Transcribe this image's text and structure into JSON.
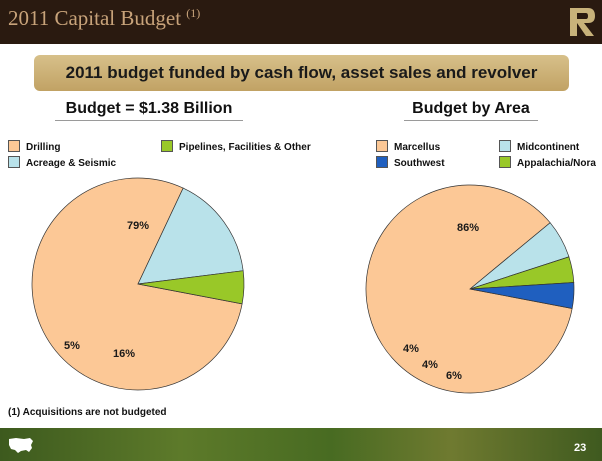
{
  "header": {
    "title": "2011 Capital Budget",
    "title_note": "(1)"
  },
  "banner": {
    "text": "2011 budget funded by cash flow, asset sales and revolver"
  },
  "footnote": "(1)  Acquisitions are not budgeted",
  "page_number": "23",
  "chart_data": [
    {
      "type": "pie",
      "title": "Budget = $1.38 Billion",
      "legend": [
        "Drilling",
        "Pipelines, Facilities & Other",
        "Acreage & Seismic"
      ],
      "slices": [
        {
          "label": "Drilling",
          "value": 79,
          "display": "79%",
          "color": "#fcc896"
        },
        {
          "label": "Acreage & Seismic",
          "value": 16,
          "display": "16%",
          "color": "#b9e2ea"
        },
        {
          "label": "Pipelines, Facilities & Other",
          "value": 5,
          "display": "5%",
          "color": "#99c828"
        }
      ]
    },
    {
      "type": "pie",
      "title": "Budget by Area",
      "legend": [
        "Marcellus",
        "Midcontinent",
        "Southwest",
        "Appalachia/Nora"
      ],
      "slices": [
        {
          "label": "Marcellus",
          "value": 86,
          "display": "86%",
          "color": "#fcc896"
        },
        {
          "label": "Midcontinent",
          "value": 6,
          "display": "6%",
          "color": "#b9e2ea"
        },
        {
          "label": "Appalachia/Nora",
          "value": 4,
          "display": "4%",
          "color": "#99c828"
        },
        {
          "label": "Southwest",
          "value": 4,
          "display": "4%",
          "color": "#1f5fbf"
        }
      ]
    }
  ]
}
